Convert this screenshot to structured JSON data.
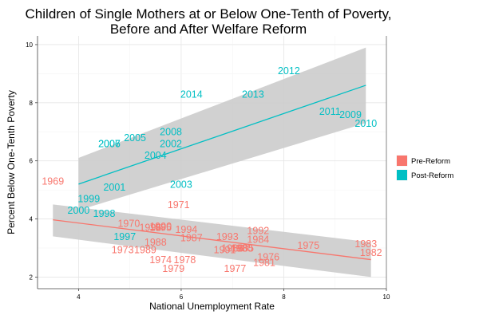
{
  "chart_data": {
    "type": "scatter",
    "title_line1": "Children of Single Mothers at or Below One-Tenth of Poverty,",
    "title_line2": "Before and After Welfare Reform",
    "xlabel": "National Unemployment Rate",
    "ylabel": "Percent Below One-Tenth Poverty",
    "xlim": [
      3.2,
      10.0
    ],
    "ylim": [
      1.6,
      10.3
    ],
    "x_ticks": [
      4,
      6,
      8,
      10
    ],
    "y_ticks": [
      2,
      4,
      6,
      8,
      10
    ],
    "grid": true,
    "legend_position": "right",
    "series": [
      {
        "name": "Pre-Reform",
        "color": "#F8766D",
        "points": [
          {
            "label": "1969",
            "x": 3.5,
            "y": 5.3
          },
          {
            "label": "1970",
            "x": 4.98,
            "y": 3.85
          },
          {
            "label": "1971",
            "x": 5.95,
            "y": 4.5
          },
          {
            "label": "1973",
            "x": 4.86,
            "y": 2.95
          },
          {
            "label": "1974",
            "x": 5.6,
            "y": 2.6
          },
          {
            "label": "1975",
            "x": 8.48,
            "y": 3.1
          },
          {
            "label": "1976",
            "x": 7.7,
            "y": 2.7
          },
          {
            "label": "1977",
            "x": 7.05,
            "y": 2.3
          },
          {
            "label": "1978",
            "x": 6.07,
            "y": 2.6
          },
          {
            "label": "1979",
            "x": 5.85,
            "y": 2.3
          },
          {
            "label": "1980",
            "x": 7.18,
            "y": 3.0
          },
          {
            "label": "1981",
            "x": 7.62,
            "y": 2.5
          },
          {
            "label": "1982",
            "x": 9.7,
            "y": 2.85
          },
          {
            "label": "1983",
            "x": 9.6,
            "y": 3.15
          },
          {
            "label": "1984",
            "x": 7.5,
            "y": 3.3
          },
          {
            "label": "1985",
            "x": 7.2,
            "y": 3.0
          },
          {
            "label": "1986",
            "x": 7.0,
            "y": 3.0
          },
          {
            "label": "1987",
            "x": 6.2,
            "y": 3.35
          },
          {
            "label": "1988",
            "x": 5.5,
            "y": 3.2
          },
          {
            "label": "1989",
            "x": 5.3,
            "y": 2.95
          },
          {
            "label": "1990",
            "x": 5.6,
            "y": 3.75
          },
          {
            "label": "1991",
            "x": 6.85,
            "y": 2.95
          },
          {
            "label": "1992",
            "x": 7.5,
            "y": 3.6
          },
          {
            "label": "1993",
            "x": 6.9,
            "y": 3.4
          },
          {
            "label": "1994",
            "x": 6.1,
            "y": 3.65
          },
          {
            "label": "1995",
            "x": 5.6,
            "y": 3.72
          },
          {
            "label": "1996",
            "x": 5.4,
            "y": 3.72
          }
        ]
      },
      {
        "name": "Post-Reform",
        "color": "#00BFC4",
        "points": [
          {
            "label": "1997",
            "x": 4.9,
            "y": 3.4
          },
          {
            "label": "1998",
            "x": 4.5,
            "y": 4.2
          },
          {
            "label": "1999",
            "x": 4.2,
            "y": 4.7
          },
          {
            "label": "2000",
            "x": 4.0,
            "y": 4.3
          },
          {
            "label": "2001",
            "x": 4.7,
            "y": 5.1
          },
          {
            "label": "2002",
            "x": 5.8,
            "y": 6.6
          },
          {
            "label": "2003",
            "x": 6.0,
            "y": 5.2
          },
          {
            "label": "2004",
            "x": 5.5,
            "y": 6.2
          },
          {
            "label": "2005",
            "x": 5.1,
            "y": 6.8
          },
          {
            "label": "2006",
            "x": 4.6,
            "y": 6.6
          },
          {
            "label": "2007",
            "x": 4.6,
            "y": 6.6
          },
          {
            "label": "2008",
            "x": 5.8,
            "y": 7.0
          },
          {
            "label": "2009",
            "x": 9.3,
            "y": 7.6
          },
          {
            "label": "2010",
            "x": 9.6,
            "y": 7.3
          },
          {
            "label": "2011",
            "x": 8.9,
            "y": 7.7
          },
          {
            "label": "2012",
            "x": 8.1,
            "y": 9.1
          },
          {
            "label": "2013",
            "x": 7.4,
            "y": 8.3
          },
          {
            "label": "2014",
            "x": 6.2,
            "y": 8.3
          }
        ]
      }
    ],
    "fits": [
      {
        "name": "Pre-Reform",
        "x": [
          3.5,
          9.7
        ],
        "y": [
          3.97,
          2.6
        ],
        "ci_upper": [
          4.5,
          3.2
        ],
        "ci_lower": [
          3.4,
          2.0
        ]
      },
      {
        "name": "Post-Reform",
        "x": [
          4.0,
          9.6
        ],
        "y": [
          5.2,
          8.6
        ],
        "ci_upper": [
          6.1,
          9.9
        ],
        "ci_lower": [
          4.3,
          7.3
        ]
      }
    ],
    "ci_color": "#cccccc"
  }
}
